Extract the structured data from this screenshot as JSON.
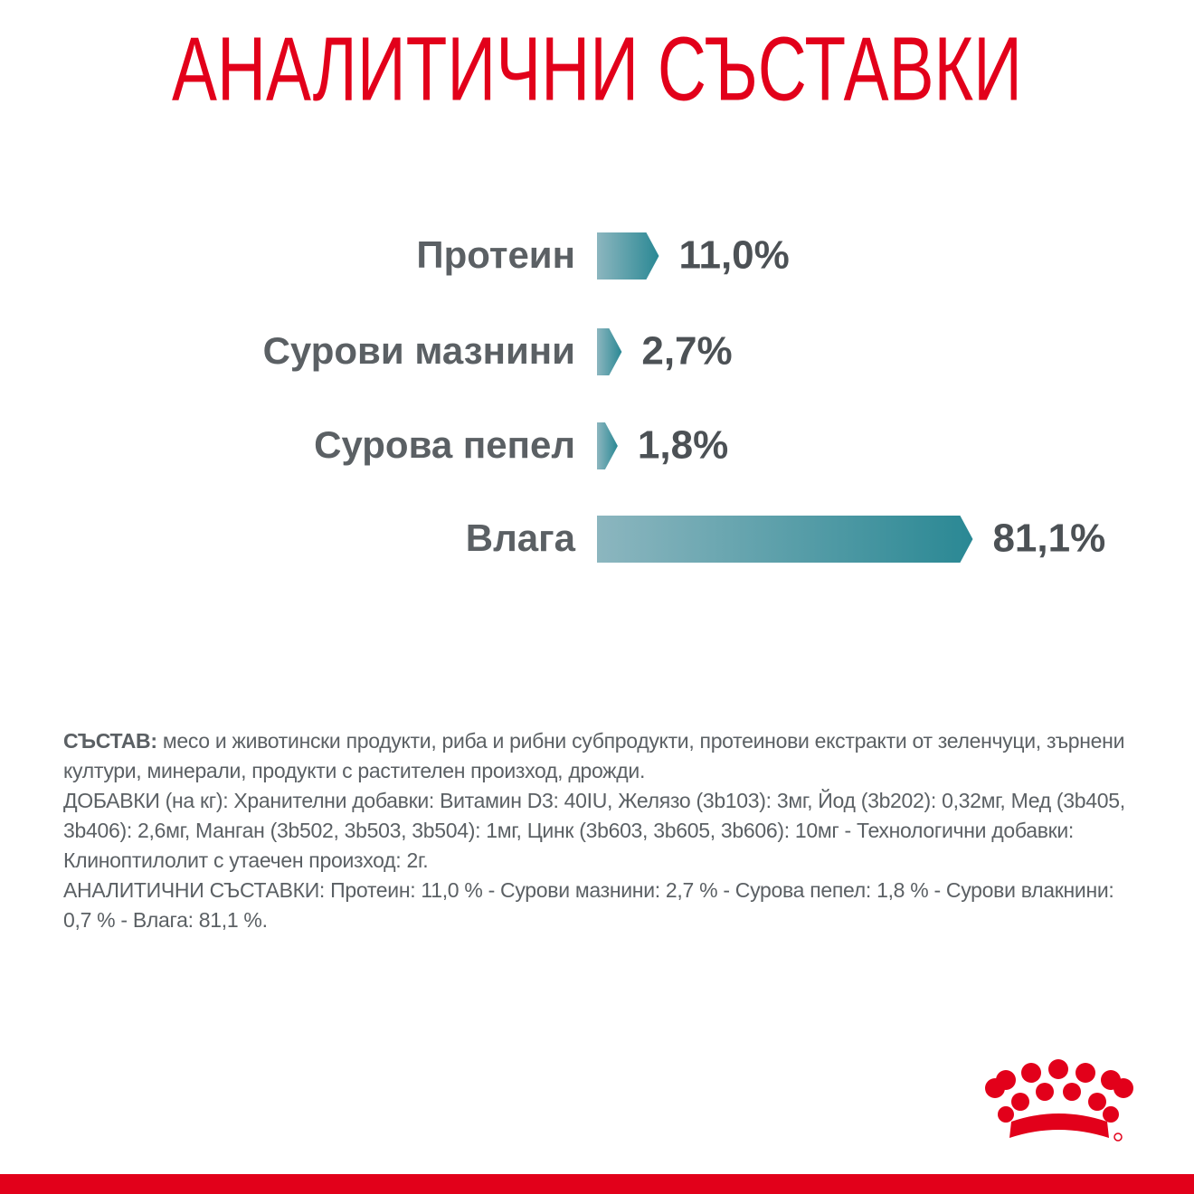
{
  "chart_data": {
    "type": "hbar",
    "title": "АНАЛИТИЧНИ СЪСТАВКИ",
    "categories": [
      "Протеин",
      "Сурови мазнини",
      "Сурова пепел",
      "Влага"
    ],
    "values": [
      11.0,
      2.7,
      1.8,
      81.1
    ],
    "value_labels": [
      "11,0%",
      "2,7%",
      "1,8%",
      "81,1%"
    ],
    "color": [
      "#8cb6bf",
      "#2a8894"
    ]
  },
  "composition": {
    "label": "СЪСТАВ:",
    "text": "месо и животински продукти, риба и рибни субпродукти, протеинови екстракти от зеленчуци, зърнени култури, минерали, продукти с растителен произход, дрожди.",
    "additives": "ДОБАВКИ (на кг): Хранителни добавки: Витамин D3: 40IU, Желязо (3b103): 3мг, Йод (3b202): 0,32мг, Мед (3b405, 3b406): 2,6мг, Манган (3b502, 3b503, 3b504): 1мг, Цинк (3b603, 3b605, 3b606): 10мг - Технологични добавки: Клиноптилолит с утаечен произход: 2г.",
    "analytical": "АНАЛИТИЧНИ СЪСТАВКИ: Протеин: 11,0 % - Сурови мазнини: 2,7 % - Сурова пепел: 1,8 % - Сурови влакнини: 0,7 % - Влага: 81,1 %."
  }
}
